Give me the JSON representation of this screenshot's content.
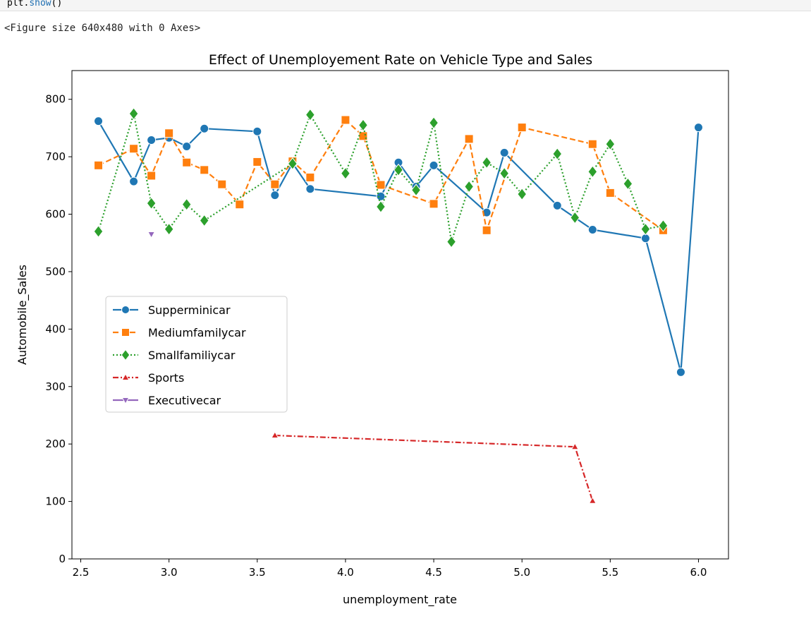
{
  "cell": {
    "code_prefix": "plt.",
    "code_fn": "show",
    "code_suffix": "()",
    "output_text": "<Figure size 640x480 with 0 Axes>"
  },
  "chart_data": {
    "type": "line",
    "title": "Effect of Unemployement Rate on Vehicle Type and Sales",
    "xlabel": "unemployment_rate",
    "ylabel": "Automobile_Sales",
    "xlim": [
      2.45,
      6.17
    ],
    "ylim": [
      0,
      850
    ],
    "xticks": [
      "2.5",
      "3.0",
      "3.5",
      "4.0",
      "4.5",
      "5.0",
      "5.5",
      "6.0"
    ],
    "yticks": [
      "0",
      "100",
      "200",
      "300",
      "400",
      "500",
      "600",
      "700",
      "800"
    ],
    "grid": false,
    "legend_position": "center-left",
    "series": [
      {
        "name": "Supperminicar",
        "color": "#1f77b4",
        "marker": "circle",
        "linestyle": "solid",
        "points": [
          [
            2.6,
            762
          ],
          [
            2.8,
            657
          ],
          [
            2.9,
            729
          ],
          [
            3.0,
            733
          ],
          [
            3.1,
            718
          ],
          [
            3.2,
            749
          ],
          [
            3.5,
            744
          ],
          [
            3.6,
            633
          ],
          [
            3.7,
            689
          ],
          [
            3.8,
            644
          ],
          [
            4.2,
            631
          ],
          [
            4.3,
            690
          ],
          [
            4.4,
            648
          ],
          [
            4.5,
            685
          ],
          [
            4.8,
            603
          ],
          [
            4.9,
            707
          ],
          [
            5.2,
            615
          ],
          [
            5.4,
            573
          ],
          [
            5.7,
            558
          ],
          [
            5.9,
            325
          ],
          [
            6.0,
            751
          ]
        ]
      },
      {
        "name": "Mediumfamilycar",
        "color": "#ff7f0e",
        "marker": "square",
        "linestyle": "dashed",
        "points": [
          [
            2.6,
            685
          ],
          [
            2.8,
            714
          ],
          [
            2.9,
            667
          ],
          [
            3.0,
            741
          ],
          [
            3.1,
            690
          ],
          [
            3.2,
            677
          ],
          [
            3.3,
            652
          ],
          [
            3.4,
            617
          ],
          [
            3.5,
            691
          ],
          [
            3.6,
            652
          ],
          [
            3.7,
            692
          ],
          [
            3.8,
            664
          ],
          [
            4.0,
            764
          ],
          [
            4.1,
            736
          ],
          [
            4.2,
            651
          ],
          [
            4.5,
            618
          ],
          [
            4.7,
            731
          ],
          [
            4.8,
            572
          ],
          [
            5.0,
            751
          ],
          [
            5.4,
            722
          ],
          [
            5.5,
            637
          ],
          [
            5.8,
            572
          ]
        ]
      },
      {
        "name": "Smallfamiliycar",
        "color": "#2ca02c",
        "marker": "diamond",
        "linestyle": "dotted",
        "points": [
          [
            2.6,
            570
          ],
          [
            2.8,
            775
          ],
          [
            2.9,
            619
          ],
          [
            3.0,
            574
          ],
          [
            3.1,
            617
          ],
          [
            3.2,
            589
          ],
          [
            3.7,
            688
          ],
          [
            3.8,
            773
          ],
          [
            4.0,
            671
          ],
          [
            4.1,
            755
          ],
          [
            4.2,
            613
          ],
          [
            4.3,
            677
          ],
          [
            4.4,
            642
          ],
          [
            4.5,
            759
          ],
          [
            4.6,
            552
          ],
          [
            4.7,
            648
          ],
          [
            4.8,
            690
          ],
          [
            4.9,
            671
          ],
          [
            5.0,
            635
          ],
          [
            5.2,
            705
          ],
          [
            5.3,
            594
          ],
          [
            5.4,
            674
          ],
          [
            5.5,
            722
          ],
          [
            5.6,
            653
          ],
          [
            5.7,
            574
          ],
          [
            5.8,
            580
          ]
        ]
      },
      {
        "name": "Sports",
        "color": "#d62728",
        "marker": "triangle-up",
        "linestyle": "dashdot",
        "points": [
          [
            3.6,
            215
          ],
          [
            5.3,
            195
          ],
          [
            5.4,
            101
          ]
        ]
      },
      {
        "name": "Executivecar",
        "color": "#9467bd",
        "marker": "triangle-down",
        "linestyle": "solid",
        "points": [
          [
            2.9,
            565
          ]
        ]
      }
    ]
  }
}
